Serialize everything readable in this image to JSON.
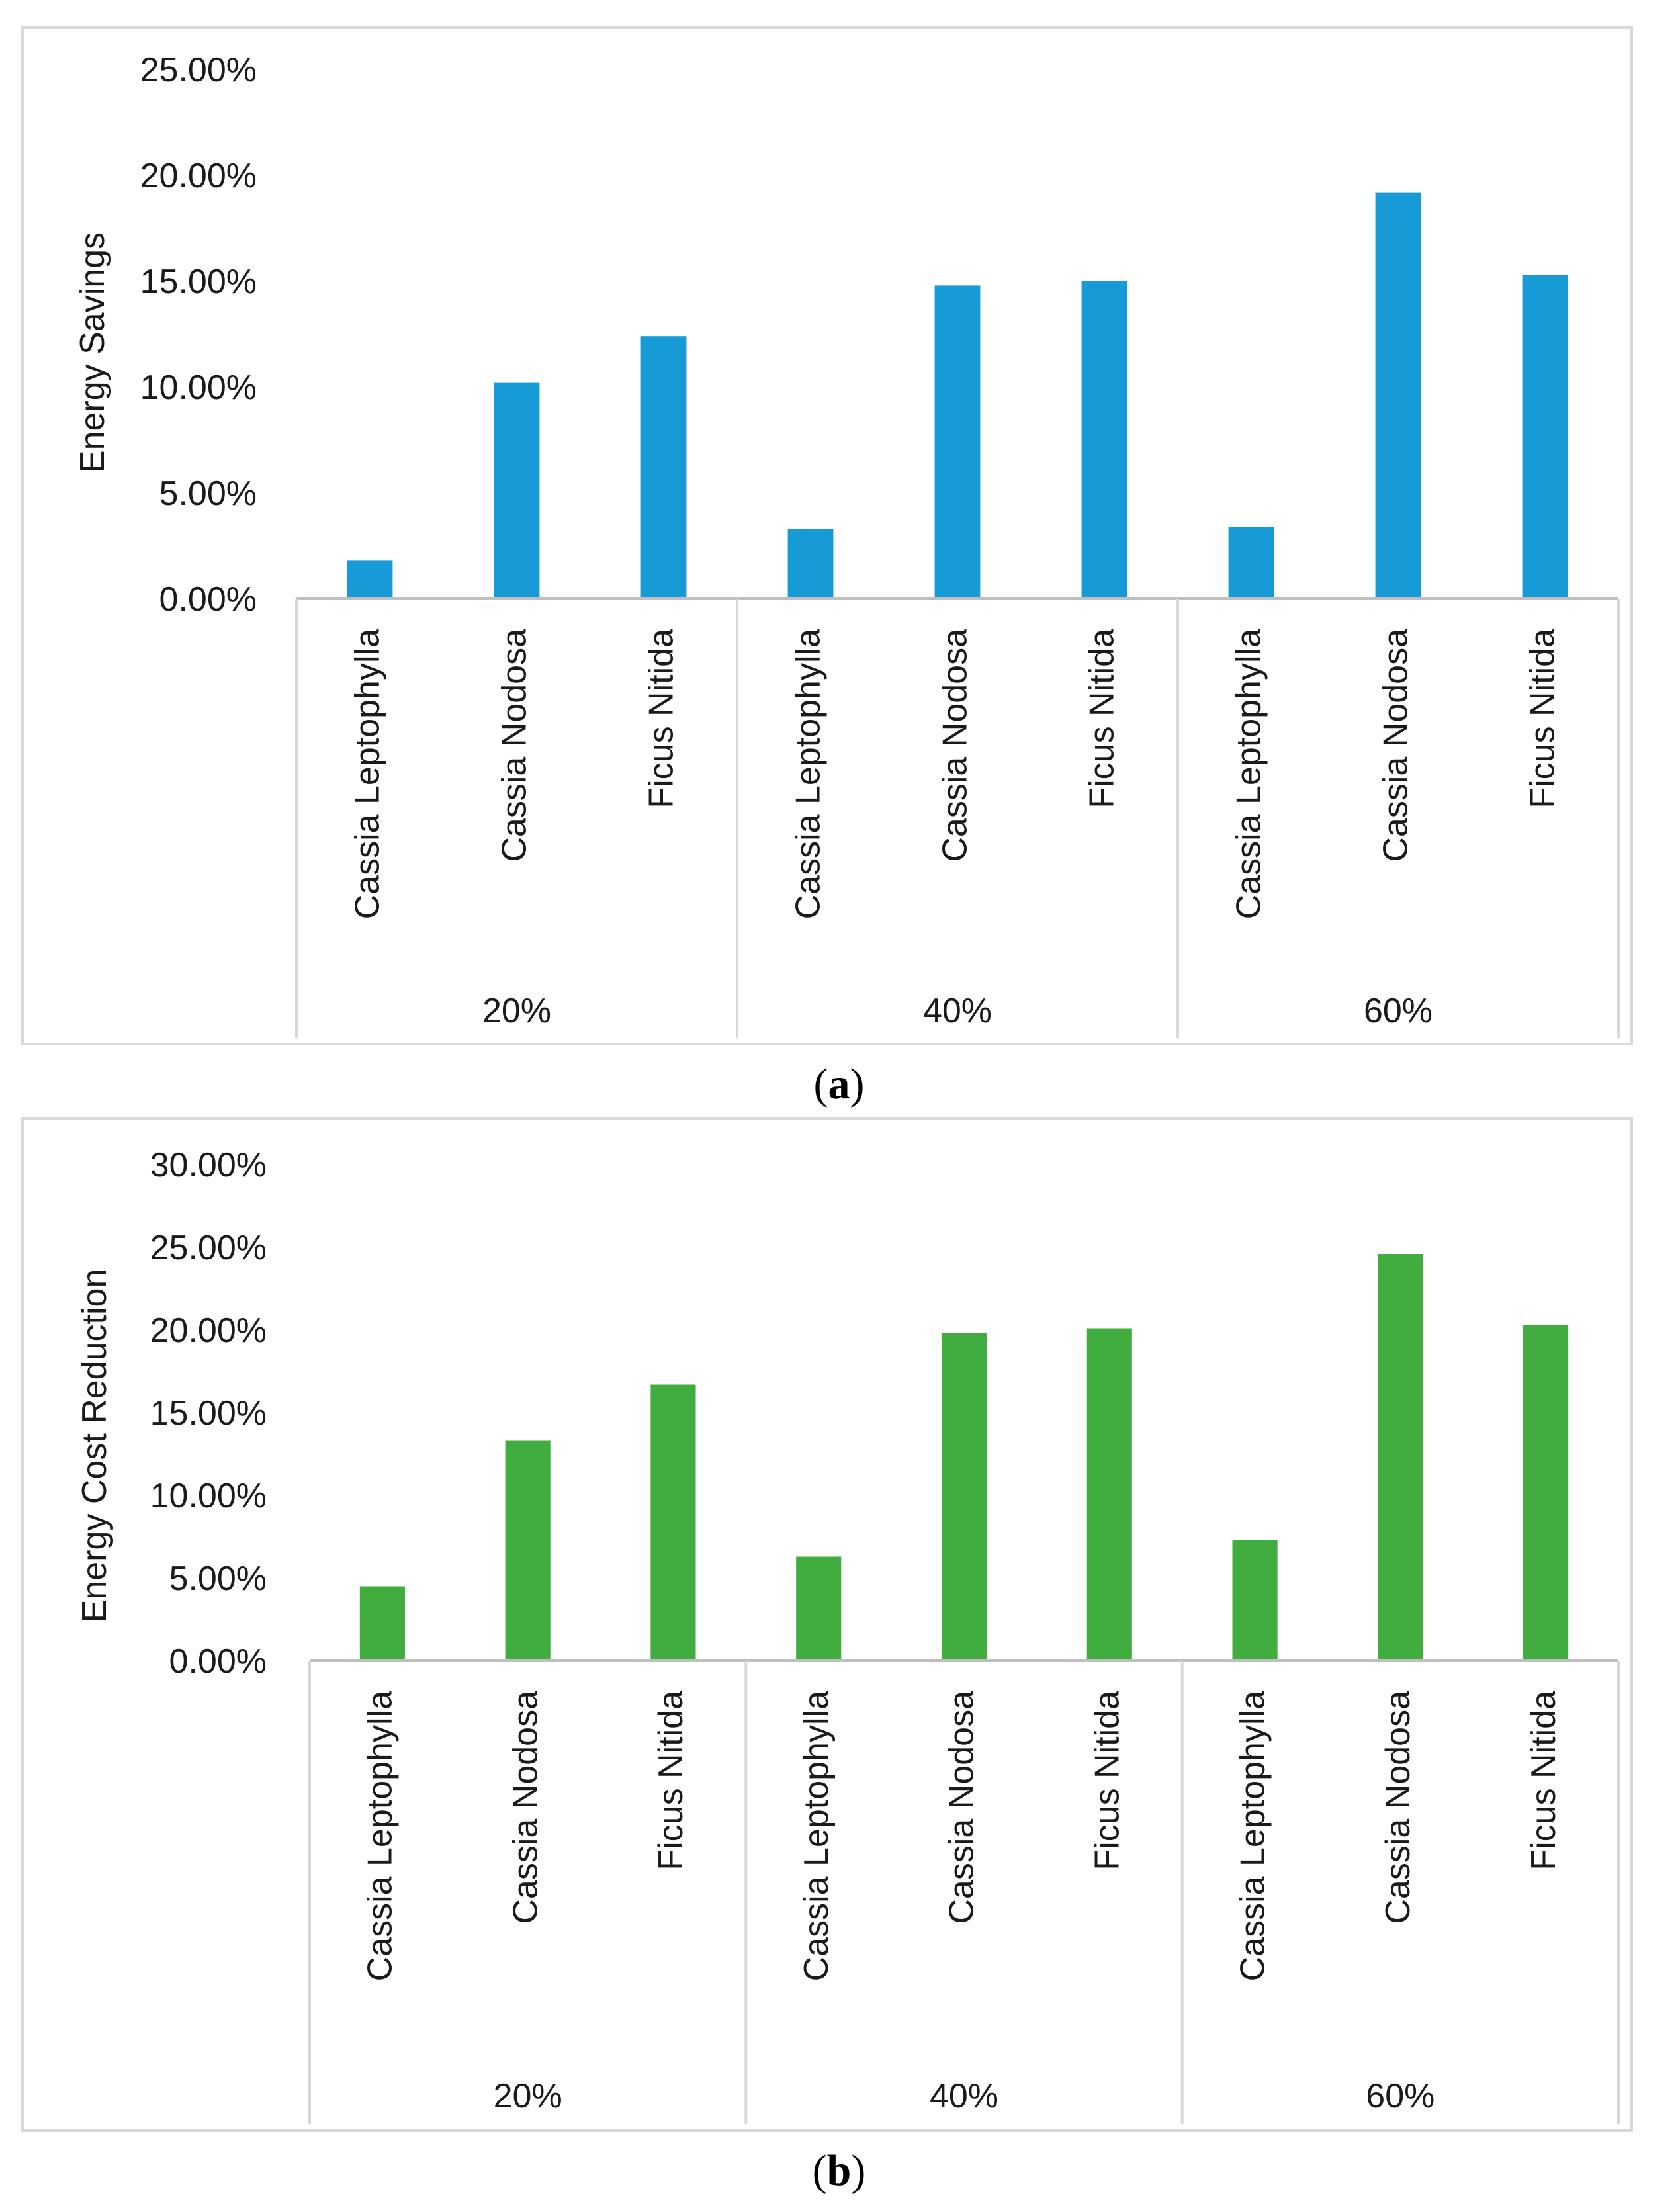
{
  "chart_data": [
    {
      "type": "bar",
      "panel": "a",
      "title": "",
      "xlabel": "",
      "ylabel": "Energy Savings",
      "ylim": [
        0,
        0.25
      ],
      "yticks": [
        0,
        0.05,
        0.1,
        0.15,
        0.2,
        0.25
      ],
      "ytick_labels": [
        "0.00%",
        "5.00%",
        "10.00%",
        "15.00%",
        "20.00%",
        "25.00%"
      ],
      "grid": false,
      "groups": [
        {
          "label": "20%",
          "categories": [
            "Cassia Leptophylla",
            "Cassia Nodosa",
            "Ficus Nitida"
          ],
          "values": [
            0.018,
            0.102,
            0.124
          ]
        },
        {
          "label": "40%",
          "categories": [
            "Cassia Leptophylla",
            "Cassia Nodosa",
            "Ficus Nitida"
          ],
          "values": [
            0.033,
            0.148,
            0.15
          ]
        },
        {
          "label": "60%",
          "categories": [
            "Cassia Leptophylla",
            "Cassia Nodosa",
            "Ficus Nitida"
          ],
          "values": [
            0.034,
            0.192,
            0.153
          ]
        }
      ],
      "color": "#179BD7"
    },
    {
      "type": "bar",
      "panel": "b",
      "title": "",
      "xlabel": "",
      "ylabel": "Energy Cost Reduction",
      "ylim": [
        0,
        0.3
      ],
      "yticks": [
        0,
        0.05,
        0.1,
        0.15,
        0.2,
        0.25,
        0.3
      ],
      "ytick_labels": [
        "0.00%",
        "5.00%",
        "10.00%",
        "15.00%",
        "20.00%",
        "25.00%",
        "30.00%"
      ],
      "grid": false,
      "groups": [
        {
          "label": "20%",
          "categories": [
            "Cassia Leptophylla",
            "Cassia Nodosa",
            "Ficus Nitida"
          ],
          "values": [
            0.045,
            0.133,
            0.167
          ]
        },
        {
          "label": "40%",
          "categories": [
            "Cassia Leptophylla",
            "Cassia Nodosa",
            "Ficus Nitida"
          ],
          "values": [
            0.063,
            0.198,
            0.201
          ]
        },
        {
          "label": "60%",
          "categories": [
            "Cassia Leptophylla",
            "Cassia Nodosa",
            "Ficus Nitida"
          ],
          "values": [
            0.073,
            0.246,
            0.203
          ]
        }
      ],
      "color": "#41AD3E"
    }
  ],
  "captions": {
    "a": {
      "open": "(",
      "letter": "a",
      "close": ")"
    },
    "b": {
      "open": "(",
      "letter": "b",
      "close": ")"
    }
  },
  "colors": {
    "frame": "#D9D9D9",
    "axis": "#BFBFBF",
    "text": "#1A1A1A"
  }
}
